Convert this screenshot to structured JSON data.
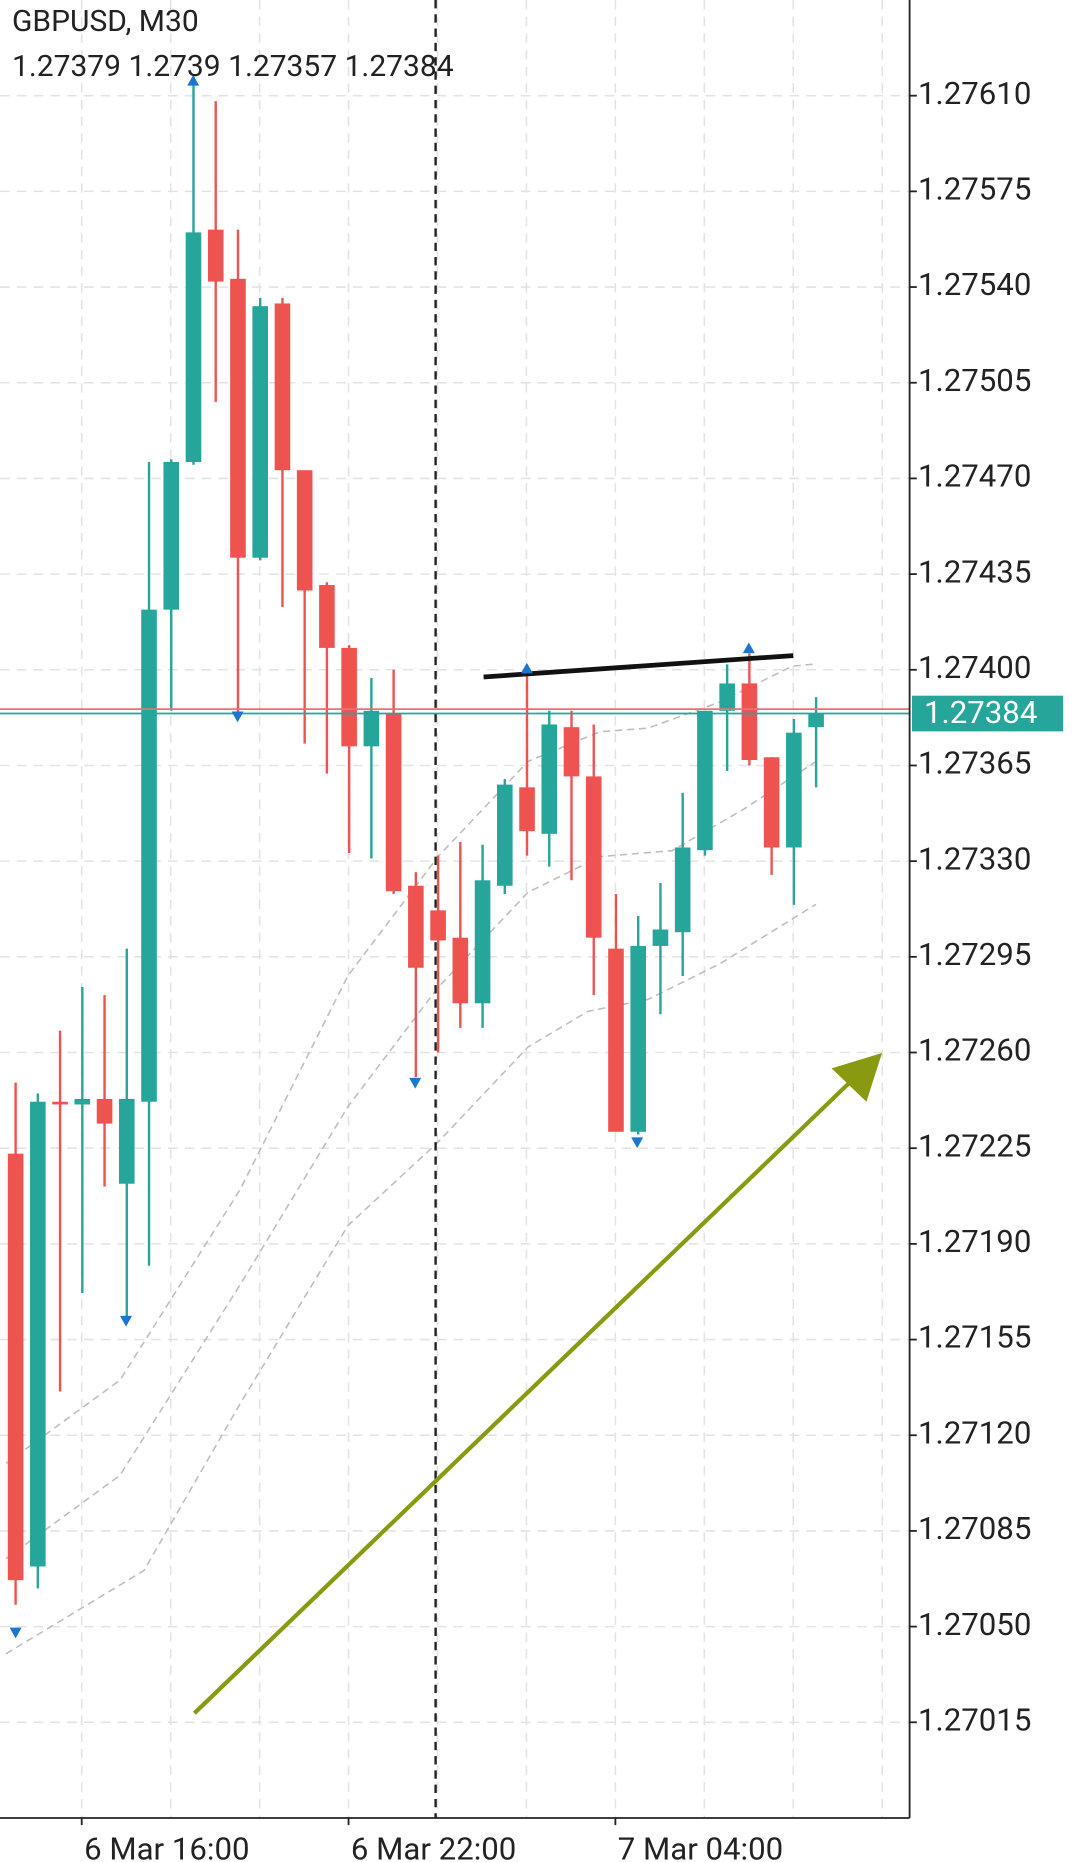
{
  "chart_data": {
    "type": "candlestick",
    "title": "GBPUSD, M30",
    "categories": [
      null,
      null,
      null,
      "6 Mar 16:00",
      null,
      null,
      null,
      null,
      null,
      null,
      null,
      null,
      null,
      null,
      null,
      "6 Mar 22:00",
      null,
      null,
      null,
      null,
      null,
      null,
      null,
      null,
      null,
      null,
      null,
      "7 Mar 04:00",
      null,
      null,
      null,
      null,
      null,
      null,
      null,
      null,
      null
    ],
    "open": [
      1.27223,
      1.27072,
      1.27242,
      1.27241,
      1.27243,
      1.27212,
      1.27242,
      1.27422,
      1.27476,
      1.27561,
      1.27543,
      1.27441,
      1.27534,
      1.27473,
      1.27431,
      1.27408,
      1.27372,
      1.27384,
      1.27321,
      1.27312,
      1.27302,
      1.27278,
      1.27321,
      1.27357,
      1.2734,
      1.27379,
      1.27361,
      1.27298,
      1.27231,
      1.27299,
      1.27304,
      1.27334,
      1.27385,
      1.27395,
      1.27368,
      1.27335,
      1.27379
    ],
    "high": [
      1.27249,
      1.27245,
      1.27268,
      1.27284,
      1.27281,
      1.27298,
      1.27476,
      1.27477,
      1.27617,
      1.27608,
      1.27561,
      1.27536,
      1.27536,
      1.27473,
      1.27432,
      1.27409,
      1.27397,
      1.274,
      1.27326,
      1.27332,
      1.27337,
      1.27336,
      1.2736,
      1.27399,
      1.27385,
      1.27385,
      1.2738,
      1.27318,
      1.2731,
      1.27322,
      1.27355,
      1.27385,
      1.27402,
      1.27406,
      1.27368,
      1.27382,
      1.2739
    ],
    "low": [
      1.27058,
      1.27064,
      1.27136,
      1.27172,
      1.27211,
      1.27162,
      1.27182,
      1.27385,
      1.27475,
      1.27498,
      1.27384,
      1.2744,
      1.27423,
      1.27373,
      1.27362,
      1.27333,
      1.27331,
      1.27318,
      1.27251,
      1.2726,
      1.27269,
      1.27269,
      1.27318,
      1.27332,
      1.27328,
      1.27323,
      1.27281,
      1.27231,
      1.2723,
      1.27274,
      1.27288,
      1.27332,
      1.27363,
      1.27365,
      1.27325,
      1.27314,
      1.27357
    ],
    "close": [
      1.27067,
      1.27242,
      1.27241,
      1.27243,
      1.27234,
      1.27243,
      1.27422,
      1.27476,
      1.2756,
      1.27542,
      1.27441,
      1.27533,
      1.27473,
      1.27429,
      1.27408,
      1.27372,
      1.27385,
      1.27319,
      1.27291,
      1.27301,
      1.27278,
      1.27323,
      1.27358,
      1.27341,
      1.2738,
      1.27361,
      1.27302,
      1.27231,
      1.27299,
      1.27305,
      1.27335,
      1.27385,
      1.27395,
      1.27367,
      1.27335,
      1.27377,
      1.27384
    ],
    "up_color": "#26a69a",
    "down_color": "#ef5350",
    "ylim": [
      1.2698,
      1.27645
    ],
    "yticks": [
      {
        "value": 1.2761,
        "label": "1.27610"
      },
      1.27575,
      {
        "value": 1.2754,
        "label": "1.27540"
      },
      1.27505,
      {
        "value": 1.2747,
        "label": "1.27470"
      },
      1.27435,
      {
        "value": 1.274,
        "label": "1.27400"
      },
      1.27365,
      {
        "value": 1.2733,
        "label": "1.27330"
      },
      1.27295,
      {
        "value": 1.2726,
        "label": "1.27260"
      },
      1.27225,
      {
        "value": 1.2719,
        "label": "1.27190"
      },
      1.27155,
      {
        "value": 1.2712,
        "label": "1.27120"
      },
      1.27085,
      {
        "value": 1.2705,
        "label": "1.27050"
      },
      1.27015
    ],
    "grid": true
  }
}
